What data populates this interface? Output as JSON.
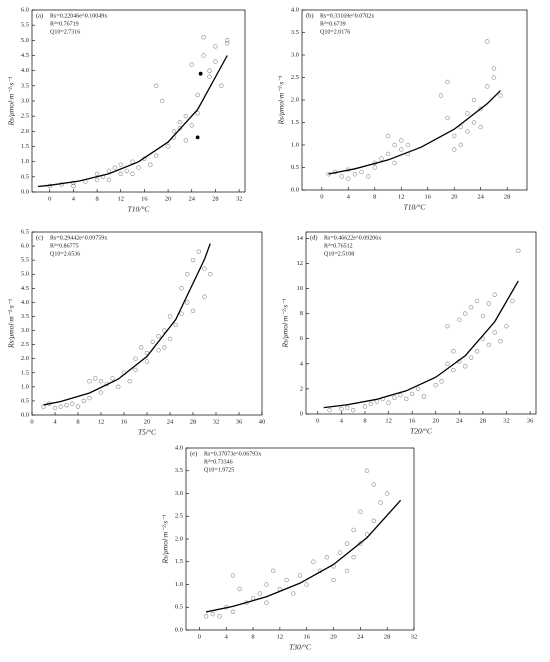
{
  "chart_data": [
    {
      "type": "scatter",
      "label": "(a)",
      "equation": "Rs=0.22046e^0.10049x",
      "r2": "R²=0.76719",
      "q10": "Q10=2.7316",
      "xlabel": "T10/°C",
      "ylabel": "Rs/μmol·m⁻²·s⁻¹",
      "xlim": [
        -3,
        33
      ],
      "ylim": [
        0,
        6
      ],
      "xticks": [
        0,
        4,
        8,
        12,
        16,
        20,
        24,
        28,
        32
      ],
      "yticks": [
        {
          "value": 0,
          "label": "0.0"
        },
        {
          "value": 0.5,
          "label": "0.5"
        },
        {
          "value": 1,
          "label": "1.0"
        },
        {
          "value": 1.5,
          "label": "1.5"
        },
        {
          "value": 2,
          "label": "2.0"
        },
        {
          "value": 2.5,
          "label": "2.5"
        },
        {
          "value": 3,
          "label": "3.0"
        },
        {
          "value": 3.5,
          "label": "3.5"
        },
        {
          "value": 4,
          "label": "4.0"
        },
        {
          "value": 4.5,
          "label": "4.5"
        },
        {
          "value": 5,
          "label": "5.0"
        },
        {
          "value": 5.5,
          "label": "5.5"
        },
        {
          "value": 6,
          "label": "6.0"
        }
      ],
      "series": [
        {
          "style": "open",
          "color": "#8a8a8a",
          "x": [
            0,
            2,
            4,
            4,
            6,
            8,
            8,
            9,
            10,
            10,
            11,
            12,
            12,
            13,
            14,
            14,
            15,
            16,
            17,
            18,
            18,
            19,
            20,
            21,
            21,
            22,
            22,
            23,
            23,
            24,
            24,
            25,
            25,
            26,
            26,
            27,
            27,
            28,
            28,
            29,
            30,
            30
          ],
          "values": [
            0.2,
            0.25,
            0.3,
            0.2,
            0.35,
            0.4,
            0.6,
            0.5,
            0.7,
            0.4,
            0.8,
            0.6,
            0.9,
            0.7,
            1.0,
            0.6,
            0.8,
            1.1,
            0.9,
            1.2,
            3.5,
            3.0,
            1.5,
            2.0,
            1.8,
            2.1,
            2.3,
            1.7,
            2.5,
            2.2,
            4.2,
            2.6,
            3.2,
            5.1,
            4.5,
            4.0,
            3.8,
            4.8,
            4.3,
            3.5,
            5.0,
            4.9
          ]
        },
        {
          "style": "filled",
          "color": "#000000",
          "x": [
            25.5,
            25
          ],
          "values": [
            3.9,
            1.8
          ]
        },
        {
          "style": "line",
          "color": "#000000",
          "x": [
            -2,
            0,
            5,
            10,
            15,
            20,
            25,
            30
          ],
          "values": [
            0.18,
            0.22,
            0.364,
            0.602,
            0.995,
            1.645,
            2.72,
            4.5
          ]
        }
      ]
    },
    {
      "type": "scatter",
      "label": "(b)",
      "equation": "Rs=0.33169e^0.0702x",
      "r2": "R²=0.6739",
      "q10": "Q10=2.0176",
      "xlabel": "T10/°C",
      "ylabel": "Rs/μmol·m⁻²·s⁻¹",
      "xlim": [
        -3,
        31
      ],
      "ylim": [
        0,
        4
      ],
      "xticks": [
        0,
        4,
        8,
        12,
        16,
        20,
        24,
        28
      ],
      "yticks": [
        {
          "value": 0,
          "label": "0.0"
        },
        {
          "value": 0.5,
          "label": "0.5"
        },
        {
          "value": 1,
          "label": "1.0"
        },
        {
          "value": 1.5,
          "label": "1.5"
        },
        {
          "value": 2,
          "label": "2.0"
        },
        {
          "value": 2.5,
          "label": "2.5"
        },
        {
          "value": 3,
          "label": "3.0"
        },
        {
          "value": 3.5,
          "label": "3.5"
        },
        {
          "value": 4,
          "label": "4.0"
        }
      ],
      "series": [
        {
          "style": "open",
          "color": "#8a8a8a",
          "x": [
            1,
            2,
            3,
            4,
            4,
            5,
            6,
            7,
            8,
            8,
            9,
            10,
            10,
            11,
            11,
            12,
            12,
            13,
            13,
            18,
            19,
            19,
            20,
            20,
            21,
            21,
            22,
            22,
            23,
            23,
            24,
            24,
            25,
            25,
            26,
            26,
            27
          ],
          "values": [
            0.35,
            0.4,
            0.3,
            0.45,
            0.25,
            0.35,
            0.4,
            0.3,
            0.5,
            0.6,
            0.7,
            0.8,
            1.2,
            1.0,
            0.6,
            0.9,
            1.1,
            0.8,
            1.0,
            2.1,
            1.6,
            2.4,
            1.2,
            0.9,
            1.4,
            1.0,
            1.3,
            1.7,
            1.5,
            2.0,
            1.8,
            1.4,
            2.3,
            3.3,
            2.5,
            2.7,
            2.1
          ]
        },
        {
          "style": "line",
          "color": "#000000",
          "x": [
            1,
            5,
            10,
            15,
            20,
            25,
            27
          ],
          "values": [
            0.356,
            0.471,
            0.668,
            0.951,
            1.35,
            1.92,
            2.21
          ]
        }
      ]
    },
    {
      "type": "scatter",
      "label": "(c)",
      "equation": "Rs=0.29442e^0.09759x",
      "r2": "R²=0.86775",
      "q10": "Q10=2.6536",
      "xlabel": "T5/°C",
      "ylabel": "Rs/μmol·m⁻²·s⁻¹",
      "xlim": [
        0,
        40
      ],
      "ylim": [
        0,
        6.5
      ],
      "xticks": [
        0,
        4,
        8,
        12,
        16,
        20,
        24,
        28,
        32,
        36,
        40
      ],
      "yticks": [
        {
          "value": 0,
          "label": "0.0"
        },
        {
          "value": 0.5,
          "label": "0.5"
        },
        {
          "value": 1,
          "label": "1.0"
        },
        {
          "value": 1.5,
          "label": "1.5"
        },
        {
          "value": 2,
          "label": "2.0"
        },
        {
          "value": 2.5,
          "label": "2.5"
        },
        {
          "value": 3,
          "label": "3.0"
        },
        {
          "value": 3.5,
          "label": "3.5"
        },
        {
          "value": 4,
          "label": "4.0"
        },
        {
          "value": 4.5,
          "label": "4.5"
        },
        {
          "value": 5,
          "label": "5.0"
        },
        {
          "value": 5.5,
          "label": "5.5"
        },
        {
          "value": 6,
          "label": "6.0"
        },
        {
          "value": 6.5,
          "label": "6.5"
        }
      ],
      "series": [
        {
          "style": "open",
          "color": "#8a8a8a",
          "x": [
            2,
            3,
            4,
            5,
            6,
            7,
            8,
            9,
            10,
            10,
            11,
            12,
            12,
            13,
            14,
            15,
            16,
            17,
            18,
            18,
            19,
            20,
            20,
            21,
            22,
            22,
            23,
            23,
            24,
            24,
            25,
            26,
            26,
            27,
            27,
            28,
            28,
            29,
            30,
            30,
            31
          ],
          "values": [
            0.3,
            0.4,
            0.25,
            0.3,
            0.35,
            0.4,
            0.3,
            0.5,
            1.2,
            0.6,
            1.3,
            1.2,
            0.8,
            1.1,
            1.3,
            1.0,
            1.5,
            1.2,
            2.0,
            1.6,
            2.4,
            2.2,
            1.9,
            2.6,
            2.3,
            2.8,
            3.0,
            2.4,
            3.5,
            2.7,
            3.2,
            4.5,
            3.6,
            5.0,
            4.0,
            5.5,
            3.7,
            5.8,
            5.2,
            4.2,
            5.0
          ]
        },
        {
          "style": "line",
          "color": "#000000",
          "x": [
            2,
            5,
            10,
            15,
            20,
            25,
            30,
            31
          ],
          "values": [
            0.357,
            0.479,
            0.781,
            1.274,
            2.08,
            3.39,
            5.53,
            6.09
          ]
        }
      ]
    },
    {
      "type": "scatter",
      "label": "(d)",
      "equation": "Rs=0.46622e^0.09206x",
      "r2": "R²=0.76512",
      "q10": "Q10=2.5108",
      "xlabel": "T20/°C",
      "ylabel": "Rs/μmol·m⁻²·s⁻¹",
      "xlim": [
        -2,
        37
      ],
      "ylim": [
        0,
        14.5
      ],
      "xticks": [
        0,
        4,
        8,
        12,
        16,
        20,
        24,
        28,
        32,
        36
      ],
      "yticks": [
        0,
        2,
        4,
        6,
        8,
        10,
        12,
        14
      ],
      "series": [
        {
          "style": "open",
          "color": "#8a8a8a",
          "x": [
            2,
            4,
            5,
            6,
            8,
            9,
            10,
            11,
            12,
            13,
            14,
            15,
            16,
            17,
            18,
            20,
            21,
            22,
            22,
            23,
            23,
            24,
            24,
            25,
            25,
            26,
            26,
            27,
            27,
            28,
            28,
            29,
            29,
            30,
            30,
            31,
            32,
            33,
            34
          ],
          "values": [
            0.3,
            0.4,
            0.5,
            0.3,
            0.6,
            0.8,
            1.0,
            1.2,
            0.9,
            1.3,
            1.5,
            1.2,
            1.6,
            2.0,
            1.4,
            2.3,
            2.6,
            4.0,
            7.0,
            3.5,
            5.0,
            4.2,
            7.5,
            3.8,
            8.0,
            4.5,
            8.5,
            5.0,
            9.0,
            6.0,
            7.8,
            5.5,
            8.8,
            6.5,
            9.5,
            5.8,
            7.0,
            9.0,
            13.0
          ]
        },
        {
          "style": "line",
          "color": "#000000",
          "x": [
            1,
            5,
            10,
            15,
            20,
            25,
            30,
            34
          ],
          "values": [
            0.511,
            0.738,
            1.17,
            1.85,
            2.93,
            4.64,
            7.35,
            10.6
          ]
        }
      ]
    },
    {
      "type": "scatter",
      "label": "(e)",
      "equation": "Rs=0.37073e^0.06793x",
      "r2": "R²=0.73346",
      "q10": "Q10=1.9725",
      "xlabel": "T30/°C",
      "ylabel": "Rs/μmol·m⁻²·s⁻¹",
      "xlim": [
        -2,
        32
      ],
      "ylim": [
        0,
        4
      ],
      "xticks": [
        0,
        4,
        8,
        12,
        16,
        20,
        24,
        28,
        32
      ],
      "yticks": [
        {
          "value": 0,
          "label": "0.0"
        },
        {
          "value": 0.5,
          "label": "0.5"
        },
        {
          "value": 1,
          "label": "1.0"
        },
        {
          "value": 1.5,
          "label": "1.5"
        },
        {
          "value": 2,
          "label": "2.0"
        },
        {
          "value": 2.5,
          "label": "2.5"
        },
        {
          "value": 3,
          "label": "3.0"
        },
        {
          "value": 3.5,
          "label": "3.5"
        },
        {
          "value": 4,
          "label": "4.0"
        }
      ],
      "series": [
        {
          "style": "open",
          "color": "#8a8a8a",
          "x": [
            1,
            2,
            3,
            4,
            5,
            5,
            6,
            7,
            8,
            9,
            10,
            10,
            11,
            12,
            13,
            14,
            15,
            16,
            17,
            18,
            19,
            20,
            20,
            21,
            22,
            22,
            23,
            23,
            24,
            24,
            25,
            25,
            26,
            26,
            27,
            28
          ],
          "values": [
            0.3,
            0.35,
            0.3,
            0.5,
            1.2,
            0.4,
            0.9,
            0.6,
            0.7,
            0.8,
            1.0,
            0.6,
            1.3,
            0.9,
            1.1,
            0.8,
            1.2,
            1.0,
            1.5,
            1.3,
            1.6,
            1.4,
            1.1,
            1.7,
            1.3,
            1.9,
            2.2,
            1.6,
            2.6,
            1.9,
            3.5,
            2.1,
            3.2,
            2.4,
            2.8,
            3.0
          ]
        },
        {
          "style": "line",
          "color": "#000000",
          "x": [
            1,
            5,
            10,
            15,
            20,
            25,
            30
          ],
          "values": [
            0.397,
            0.519,
            0.73,
            1.03,
            1.44,
            2.03,
            2.85
          ]
        }
      ]
    }
  ]
}
